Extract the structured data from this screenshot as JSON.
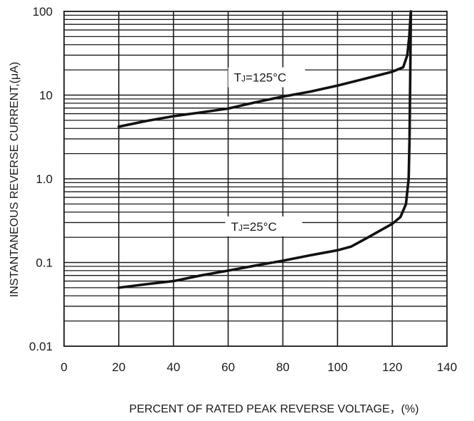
{
  "chart_data": {
    "type": "line",
    "xlabel": "PERCENT OF RATED PEAK REVERSE VOLTAGE，(%)",
    "ylabel": "INSTANTANEOUS REVERSE CURRENT,(μA)",
    "xlim": [
      0,
      140
    ],
    "ylim": [
      0.01,
      100
    ],
    "yscale": "log",
    "grid": true,
    "x_ticks": [
      "0",
      "20",
      "40",
      "60",
      "80",
      "100",
      "120",
      "140"
    ],
    "y_ticks": [
      "0.01",
      "0.1",
      "1.0",
      "10",
      "100"
    ],
    "series": [
      {
        "name": "TJ=125°C",
        "label_main": "T",
        "label_sub": "J",
        "label_rest": "=125°C",
        "x": [
          20,
          30,
          40,
          50,
          60,
          70,
          80,
          90,
          100,
          110,
          120,
          124,
          125.5,
          126.2,
          126.5,
          126.8
        ],
        "y": [
          4.2,
          4.9,
          5.6,
          6.2,
          6.9,
          8.2,
          9.6,
          11.0,
          13.0,
          15.7,
          19.0,
          21.5,
          30,
          50,
          70,
          100
        ]
      },
      {
        "name": "TJ=25°C",
        "label_main": "T",
        "label_sub": "J",
        "label_rest": "=25°C",
        "x": [
          20,
          30,
          40,
          50,
          60,
          70,
          80,
          90,
          100,
          105,
          110,
          115,
          120,
          123,
          125,
          126,
          126.3,
          126.6,
          126.8
        ],
        "y": [
          0.05,
          0.055,
          0.06,
          0.07,
          0.08,
          0.092,
          0.105,
          0.122,
          0.14,
          0.155,
          0.19,
          0.235,
          0.29,
          0.35,
          0.5,
          1.0,
          3.0,
          20,
          100
        ]
      }
    ]
  }
}
